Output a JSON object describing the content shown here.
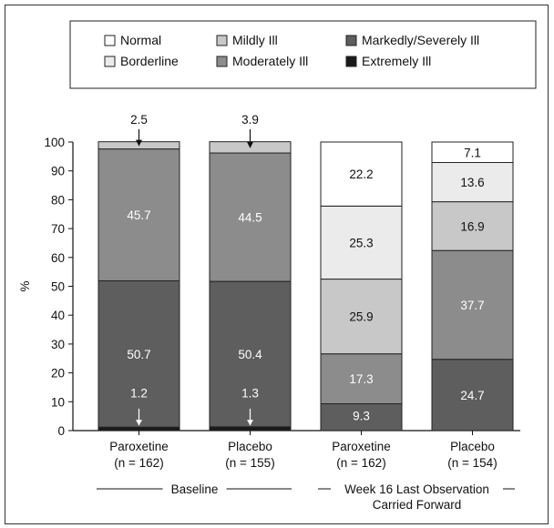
{
  "chart_data": {
    "type": "bar",
    "stacked": true,
    "ylabel": "%",
    "ylim": [
      0,
      100
    ],
    "yticks": [
      "0",
      "10",
      "20",
      "30",
      "40",
      "50",
      "60",
      "70",
      "80",
      "90",
      "100"
    ],
    "categories": [
      "Paroxetine\n(n = 162)",
      "Placebo\n(n = 155)",
      "Paroxetine\n(n = 162)",
      "Placebo\n(n = 154)"
    ],
    "groups": [
      {
        "label": "Baseline",
        "categories": [
          0,
          1
        ]
      },
      {
        "label": "Week 16 Last Observation\nCarried Forward",
        "categories": [
          2,
          3
        ]
      }
    ],
    "legend": [
      "Normal",
      "Borderline",
      "Mildly Ill",
      "Moderately Ill",
      "Markedly/Severely Ill",
      "Extremely Ill"
    ],
    "legend_position": "top",
    "series": [
      {
        "name": "Extremely Ill",
        "values": [
          1.2,
          1.3,
          0,
          0
        ],
        "color": "#1a1a1a"
      },
      {
        "name": "Markedly/Severely Ill",
        "values": [
          50.7,
          50.4,
          9.3,
          24.7
        ],
        "color": "#5e5e5e"
      },
      {
        "name": "Moderately Ill",
        "values": [
          45.7,
          44.5,
          17.3,
          37.7
        ],
        "color": "#8c8c8c"
      },
      {
        "name": "Mildly Ill",
        "values": [
          2.5,
          3.9,
          25.9,
          16.9
        ],
        "color": "#c8c8c8"
      },
      {
        "name": "Borderline",
        "values": [
          0,
          0,
          25.3,
          13.6
        ],
        "color": "#ebebeb"
      },
      {
        "name": "Normal",
        "values": [
          0,
          0,
          22.2,
          7.1
        ],
        "color": "#ffffff"
      }
    ],
    "data_labels": [
      [
        "1.2",
        "50.7",
        "45.7",
        "2.5",
        "",
        ""
      ],
      [
        "1.3",
        "50.4",
        "44.5",
        "3.9",
        "",
        ""
      ],
      [
        "",
        "9.3",
        "17.3",
        "25.9",
        "25.3",
        "22.2"
      ],
      [
        "",
        "24.7",
        "37.7",
        "16.9",
        "13.6",
        "7.1"
      ]
    ],
    "grid": false
  }
}
